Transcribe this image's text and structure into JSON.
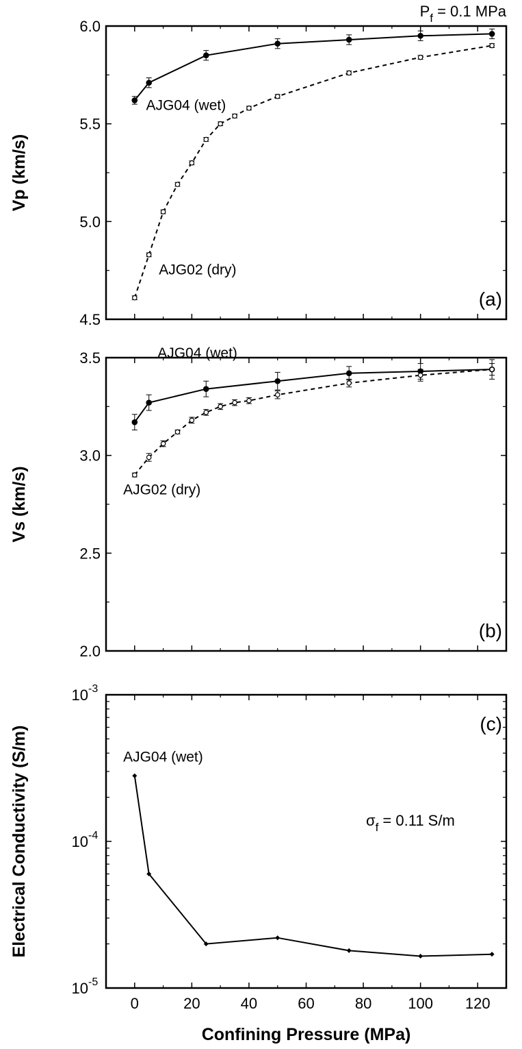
{
  "header_note": {
    "base": "P",
    "sub": "f",
    "rest": " = 0.1 MPa"
  },
  "chart_data": [
    {
      "type": "line",
      "panel_label": "(a)",
      "xlabel": "",
      "ylabel": "Vp (km/s)",
      "xlim": [
        -10,
        130
      ],
      "ylim": [
        4.5,
        6.0
      ],
      "x_ticks": [
        0,
        20,
        40,
        60,
        80,
        100,
        120
      ],
      "y_ticks": [
        4.5,
        5.0,
        5.5,
        6.0
      ],
      "y_tick_labels": [
        "4.5",
        "5.0",
        "5.5",
        "6.0"
      ],
      "series": [
        {
          "name": "AJG04 (wet)",
          "style": "solid",
          "marker": "filled-circle",
          "x": [
            0,
            5,
            25,
            50,
            75,
            100,
            125
          ],
          "y": [
            5.62,
            5.71,
            5.85,
            5.91,
            5.93,
            5.95,
            5.96
          ],
          "err": [
            0.02,
            0.025,
            0.025,
            0.025,
            0.025,
            0.025,
            0.025
          ]
        },
        {
          "name": "AJG02 (dry)",
          "style": "dashed",
          "marker": "open-circle",
          "x": [
            0,
            5,
            10,
            15,
            20,
            25,
            30,
            35,
            40,
            50,
            75,
            100,
            125
          ],
          "y": [
            4.61,
            4.83,
            5.05,
            5.19,
            5.3,
            5.42,
            5.5,
            5.54,
            5.58,
            5.64,
            5.76,
            5.84,
            5.9
          ],
          "err": [
            0.01,
            0.01,
            0.01,
            0.01,
            0.01,
            0.01,
            0.01,
            0.01,
            0.01,
            0.01,
            0.01,
            0.01,
            0.01
          ]
        }
      ],
      "annotations": [
        {
          "text": "AJG04 (wet)",
          "x": 4,
          "y": 5.57
        },
        {
          "text": "AJG02 (dry)",
          "x": 8.5,
          "y": 4.73
        }
      ]
    },
    {
      "type": "line",
      "panel_label": "(b)",
      "xlabel": "",
      "ylabel": "Vs (km/s)",
      "xlim": [
        -10,
        130
      ],
      "ylim": [
        2.0,
        3.5
      ],
      "x_ticks": [
        0,
        20,
        40,
        60,
        80,
        100,
        120
      ],
      "y_ticks": [
        2.0,
        2.5,
        3.0,
        3.5
      ],
      "y_tick_labels": [
        "2.0",
        "2.5",
        "3.0",
        "3.5"
      ],
      "series": [
        {
          "name": "AJG04 (wet)",
          "style": "solid",
          "marker": "filled-circle",
          "x": [
            0,
            5,
            25,
            50,
            75,
            100,
            125
          ],
          "y": [
            3.17,
            3.27,
            3.34,
            3.38,
            3.42,
            3.43,
            3.44
          ],
          "err": [
            0.04,
            0.04,
            0.04,
            0.045,
            0.035,
            0.04,
            0.05
          ]
        },
        {
          "name": "AJG02 (dry)",
          "style": "dashed",
          "marker": "open-circle",
          "x": [
            0,
            5,
            10,
            15,
            20,
            25,
            30,
            35,
            40,
            50,
            75,
            100,
            125
          ],
          "y": [
            2.9,
            2.99,
            3.06,
            3.12,
            3.18,
            3.22,
            3.25,
            3.27,
            3.28,
            3.31,
            3.37,
            3.41,
            3.44
          ],
          "err": [
            0.01,
            0.02,
            0.015,
            0.01,
            0.015,
            0.015,
            0.015,
            0.015,
            0.015,
            0.02,
            0.02,
            0.03,
            0.03
          ]
        }
      ],
      "annotations": [
        {
          "text": "AJG04 (wet)",
          "x": 8,
          "y": 3.5
        },
        {
          "text": "AJG02 (dry)",
          "x": -4,
          "y": 2.8
        }
      ]
    },
    {
      "type": "line",
      "panel_label": "(c)",
      "xlabel": "Confining Pressure (MPa)",
      "ylabel": "Electrical Conductivity (S/m)",
      "xlim": [
        -10,
        130
      ],
      "ylim": [
        1e-05,
        0.001
      ],
      "yscale": "log",
      "x_ticks": [
        0,
        20,
        40,
        60,
        80,
        100,
        120
      ],
      "x_tick_labels": [
        "0",
        "20",
        "40",
        "60",
        "80",
        "100",
        "120"
      ],
      "y_ticks": [
        1e-05,
        0.0001,
        0.001
      ],
      "y_tick_labels": [
        {
          "base": "10",
          "exp": "-5"
        },
        {
          "base": "10",
          "exp": "-4"
        },
        {
          "base": "10",
          "exp": "-3"
        }
      ],
      "series": [
        {
          "name": "AJG04 (wet)",
          "style": "solid",
          "marker": "diamond",
          "x": [
            0,
            5,
            25,
            50,
            75,
            100,
            125
          ],
          "y": [
            0.00028,
            6e-05,
            2e-05,
            2.2e-05,
            1.8e-05,
            1.65e-05,
            1.7e-05
          ]
        }
      ],
      "annotations": [
        {
          "text": "AJG04 (wet)",
          "x": -4,
          "y": 0.00035
        }
      ],
      "note": {
        "base": "σ",
        "sub": "f",
        "rest": " = 0.11 S/m"
      }
    }
  ]
}
